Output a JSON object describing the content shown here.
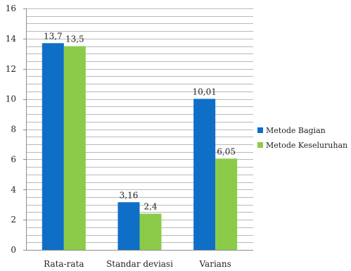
{
  "chart_data": {
    "type": "bar",
    "categories": [
      "Rata-rata",
      "Standar deviasi",
      "Varians"
    ],
    "series": [
      {
        "name": "Metode Bagian",
        "values": [
          13.7,
          3.16,
          10.01
        ],
        "labels": [
          "13,7",
          "3,16",
          "10,01"
        ],
        "color": "#0f6fc6"
      },
      {
        "name": "Metode Keseluruhan",
        "values": [
          13.5,
          2.4,
          6.05
        ],
        "labels": [
          "13,5",
          "2,4",
          "6,05"
        ],
        "color": "#8ccb4a"
      }
    ],
    "ylim": [
      0,
      16
    ],
    "yticks": [
      0,
      2,
      4,
      6,
      8,
      10,
      12,
      14,
      16
    ],
    "grid": true,
    "legend_position": "right",
    "title": "",
    "xlabel": "",
    "ylabel": ""
  }
}
